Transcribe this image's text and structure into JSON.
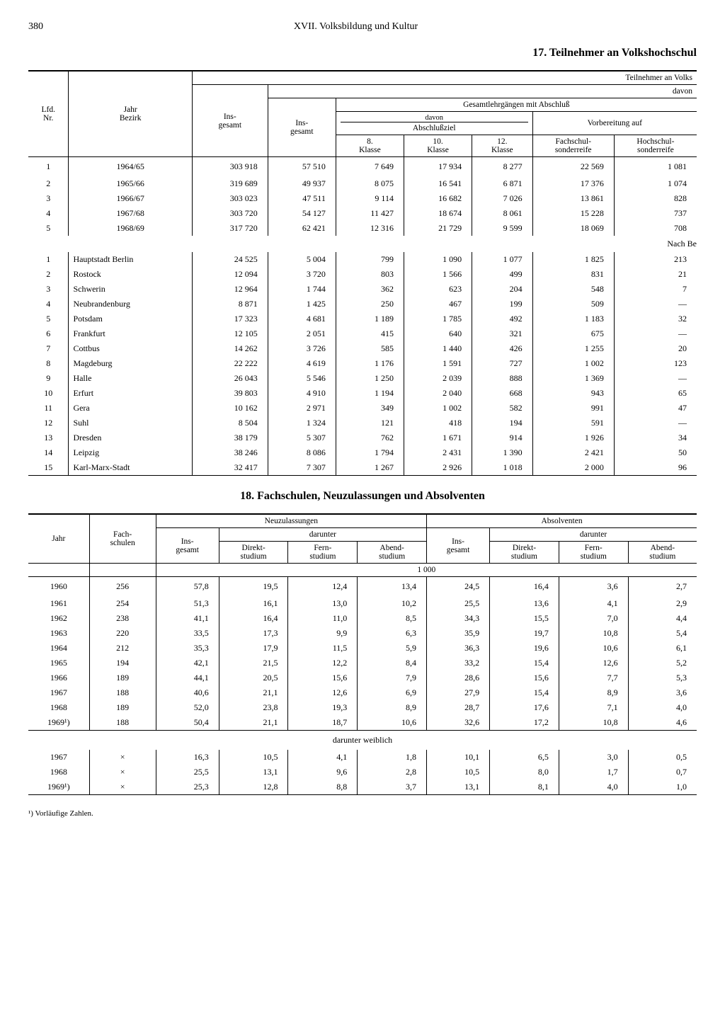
{
  "page_number": "380",
  "chapter": "XVII. Volksbildung und Kultur",
  "table17": {
    "title": "17. Teilnehmer an Volkshochschul",
    "top_right_label": "Teilnehmer an Volks",
    "davon": "davon",
    "gesamtlehr": "Gesamtlehrgängen mit Abschluß",
    "abschlussziel": "Abschlußziel",
    "vorbereitung": "Vorbereitung auf",
    "col_lfd": "Lfd.\nNr.",
    "col_jahr": "Jahr\nBezirk",
    "col_ins": "Ins-\ngesamt",
    "col_ins2": "Ins-\ngesamt",
    "col_k8": "8.\nKlasse",
    "col_k10": "10.\nKlasse",
    "col_k12": "12.\nKlasse",
    "col_fach": "Fachschul-\nsonderreife",
    "col_hoch": "Hochschul-\nsonderreife",
    "years": [
      {
        "n": "1",
        "y": "1964/65",
        "ins": "303 918",
        "ins2": "57 510",
        "k8": "7 649",
        "k10": "17 934",
        "k12": "8 277",
        "f": "22 569",
        "h": "1 081"
      },
      {
        "n": "2",
        "y": "1965/66",
        "ins": "319 689",
        "ins2": "49 937",
        "k8": "8 075",
        "k10": "16 541",
        "k12": "6 871",
        "f": "17 376",
        "h": "1 074"
      },
      {
        "n": "3",
        "y": "1966/67",
        "ins": "303 023",
        "ins2": "47 511",
        "k8": "9 114",
        "k10": "16 682",
        "k12": "7 026",
        "f": "13 861",
        "h": "828"
      },
      {
        "n": "4",
        "y": "1967/68",
        "ins": "303 720",
        "ins2": "54 127",
        "k8": "11 427",
        "k10": "18 674",
        "k12": "8 061",
        "f": "15 228",
        "h": "737"
      },
      {
        "n": "5",
        "y": "1968/69",
        "ins": "317 720",
        "ins2": "62 421",
        "k8": "12 316",
        "k10": "21 729",
        "k12": "9 599",
        "f": "18 069",
        "h": "708"
      }
    ],
    "nach_be": "Nach Be",
    "bezirke": [
      {
        "n": "1",
        "b": "Hauptstadt Berlin",
        "ins": "24 525",
        "ins2": "5 004",
        "k8": "799",
        "k10": "1 090",
        "k12": "1 077",
        "f": "1 825",
        "h": "213"
      },
      {
        "n": "2",
        "b": "Rostock",
        "ins": "12 094",
        "ins2": "3 720",
        "k8": "803",
        "k10": "1 566",
        "k12": "499",
        "f": "831",
        "h": "21"
      },
      {
        "n": "3",
        "b": "Schwerin",
        "ins": "12 964",
        "ins2": "1 744",
        "k8": "362",
        "k10": "623",
        "k12": "204",
        "f": "548",
        "h": "7"
      },
      {
        "n": "4",
        "b": "Neubrandenburg",
        "ins": "8 871",
        "ins2": "1 425",
        "k8": "250",
        "k10": "467",
        "k12": "199",
        "f": "509",
        "h": "—"
      },
      {
        "n": "5",
        "b": "Potsdam",
        "ins": "17 323",
        "ins2": "4 681",
        "k8": "1 189",
        "k10": "1 785",
        "k12": "492",
        "f": "1 183",
        "h": "32"
      },
      {
        "n": "6",
        "b": "Frankfurt",
        "ins": "12 105",
        "ins2": "2 051",
        "k8": "415",
        "k10": "640",
        "k12": "321",
        "f": "675",
        "h": "—"
      },
      {
        "n": "7",
        "b": "Cottbus",
        "ins": "14 262",
        "ins2": "3 726",
        "k8": "585",
        "k10": "1 440",
        "k12": "426",
        "f": "1 255",
        "h": "20"
      },
      {
        "n": "8",
        "b": "Magdeburg",
        "ins": "22 222",
        "ins2": "4 619",
        "k8": "1 176",
        "k10": "1 591",
        "k12": "727",
        "f": "1 002",
        "h": "123"
      },
      {
        "n": "9",
        "b": "Halle",
        "ins": "26 043",
        "ins2": "5 546",
        "k8": "1 250",
        "k10": "2 039",
        "k12": "888",
        "f": "1 369",
        "h": "—"
      },
      {
        "n": "10",
        "b": "Erfurt",
        "ins": "39 803",
        "ins2": "4 910",
        "k8": "1 194",
        "k10": "2 040",
        "k12": "668",
        "f": "943",
        "h": "65"
      },
      {
        "n": "11",
        "b": "Gera",
        "ins": "10 162",
        "ins2": "2 971",
        "k8": "349",
        "k10": "1 002",
        "k12": "582",
        "f": "991",
        "h": "47"
      },
      {
        "n": "12",
        "b": "Suhl",
        "ins": "8 504",
        "ins2": "1 324",
        "k8": "121",
        "k10": "418",
        "k12": "194",
        "f": "591",
        "h": "—"
      },
      {
        "n": "13",
        "b": "Dresden",
        "ins": "38 179",
        "ins2": "5 307",
        "k8": "762",
        "k10": "1 671",
        "k12": "914",
        "f": "1 926",
        "h": "34"
      },
      {
        "n": "14",
        "b": "Leipzig",
        "ins": "38 246",
        "ins2": "8 086",
        "k8": "1 794",
        "k10": "2 431",
        "k12": "1 390",
        "f": "2 421",
        "h": "50"
      },
      {
        "n": "15",
        "b": "Karl-Marx-Stadt",
        "ins": "32 417",
        "ins2": "7 307",
        "k8": "1 267",
        "k10": "2 926",
        "k12": "1 018",
        "f": "2 000",
        "h": "96"
      }
    ]
  },
  "table18": {
    "title": "18. Fachschulen, Neuzulassungen und Absolventen",
    "col_jahr": "Jahr",
    "col_fach": "Fach-\nschulen",
    "neuz": "Neuzulassungen",
    "abs": "Absolventen",
    "darunter": "darunter",
    "col_ins": "Ins-\ngesamt",
    "col_direkt": "Direkt-\nstudium",
    "col_fern": "Fern-\nstudium",
    "col_abend": "Abend-\nstudium",
    "unit": "1 000",
    "rows": [
      {
        "y": "1960",
        "fs": "256",
        "ni": "57,8",
        "nd": "19,5",
        "nf": "12,4",
        "na": "13,4",
        "ai": "24,5",
        "ad": "16,4",
        "af": "3,6",
        "aa": "2,7"
      },
      {
        "y": "1961",
        "fs": "254",
        "ni": "51,3",
        "nd": "16,1",
        "nf": "13,0",
        "na": "10,2",
        "ai": "25,5",
        "ad": "13,6",
        "af": "4,1",
        "aa": "2,9"
      },
      {
        "y": "1962",
        "fs": "238",
        "ni": "41,1",
        "nd": "16,4",
        "nf": "11,0",
        "na": "8,5",
        "ai": "34,3",
        "ad": "15,5",
        "af": "7,0",
        "aa": "4,4"
      },
      {
        "y": "1963",
        "fs": "220",
        "ni": "33,5",
        "nd": "17,3",
        "nf": "9,9",
        "na": "6,3",
        "ai": "35,9",
        "ad": "19,7",
        "af": "10,8",
        "aa": "5,4"
      },
      {
        "y": "1964",
        "fs": "212",
        "ni": "35,3",
        "nd": "17,9",
        "nf": "11,5",
        "na": "5,9",
        "ai": "36,3",
        "ad": "19,6",
        "af": "10,6",
        "aa": "6,1"
      },
      {
        "y": "1965",
        "fs": "194",
        "ni": "42,1",
        "nd": "21,5",
        "nf": "12,2",
        "na": "8,4",
        "ai": "33,2",
        "ad": "15,4",
        "af": "12,6",
        "aa": "5,2"
      },
      {
        "y": "1966",
        "fs": "189",
        "ni": "44,1",
        "nd": "20,5",
        "nf": "15,6",
        "na": "7,9",
        "ai": "28,6",
        "ad": "15,6",
        "af": "7,7",
        "aa": "5,3"
      },
      {
        "y": "1967",
        "fs": "188",
        "ni": "40,6",
        "nd": "21,1",
        "nf": "12,6",
        "na": "6,9",
        "ai": "27,9",
        "ad": "15,4",
        "af": "8,9",
        "aa": "3,6"
      },
      {
        "y": "1968",
        "fs": "189",
        "ni": "52,0",
        "nd": "23,8",
        "nf": "19,3",
        "na": "8,9",
        "ai": "28,7",
        "ad": "17,6",
        "af": "7,1",
        "aa": "4,0"
      },
      {
        "y": "1969¹)",
        "fs": "188",
        "ni": "50,4",
        "nd": "21,1",
        "nf": "18,7",
        "na": "10,6",
        "ai": "32,6",
        "ad": "17,2",
        "af": "10,8",
        "aa": "4,6"
      }
    ],
    "weiblich": "darunter weiblich",
    "rows_w": [
      {
        "y": "1967",
        "fs": "×",
        "ni": "16,3",
        "nd": "10,5",
        "nf": "4,1",
        "na": "1,8",
        "ai": "10,1",
        "ad": "6,5",
        "af": "3,0",
        "aa": "0,5"
      },
      {
        "y": "1968",
        "fs": "×",
        "ni": "25,5",
        "nd": "13,1",
        "nf": "9,6",
        "na": "2,8",
        "ai": "10,5",
        "ad": "8,0",
        "af": "1,7",
        "aa": "0,7"
      },
      {
        "y": "1969¹)",
        "fs": "×",
        "ni": "25,3",
        "nd": "12,8",
        "nf": "8,8",
        "na": "3,7",
        "ai": "13,1",
        "ad": "8,1",
        "af": "4,0",
        "aa": "1,0"
      }
    ],
    "footnote": "¹) Vorläufige Zahlen."
  }
}
